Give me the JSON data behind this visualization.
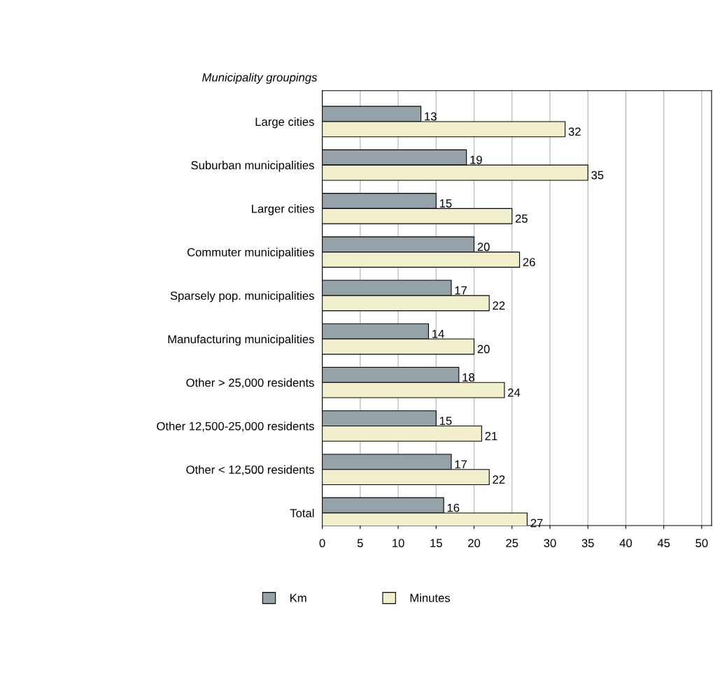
{
  "chart_data": {
    "type": "bar",
    "orientation": "horizontal",
    "ylabel": "Municipality groupings",
    "categories": [
      "Large cities",
      "Suburban municipalities",
      "Larger cities",
      "Commuter municipalities",
      "Sparsely pop. municipalities",
      "Manufacturing municipalities",
      "Other > 25,000 residents",
      "Other 12,500-25,000 residents",
      "Other < 12,500 residents",
      "Total"
    ],
    "series": [
      {
        "name": "Km",
        "color": "#95a3a9",
        "values": [
          13,
          19,
          15,
          20,
          17,
          14,
          18,
          15,
          17,
          16
        ]
      },
      {
        "name": "Minutes",
        "color": "#f2efcc",
        "values": [
          32,
          35,
          25,
          26,
          22,
          20,
          24,
          21,
          22,
          27
        ]
      }
    ],
    "xlim": [
      0,
      51.3
    ],
    "xticks": [
      0,
      5,
      10,
      15,
      20,
      25,
      30,
      35,
      40,
      45,
      50
    ],
    "grid": "x",
    "legend": "bottom",
    "data_labels": true
  }
}
